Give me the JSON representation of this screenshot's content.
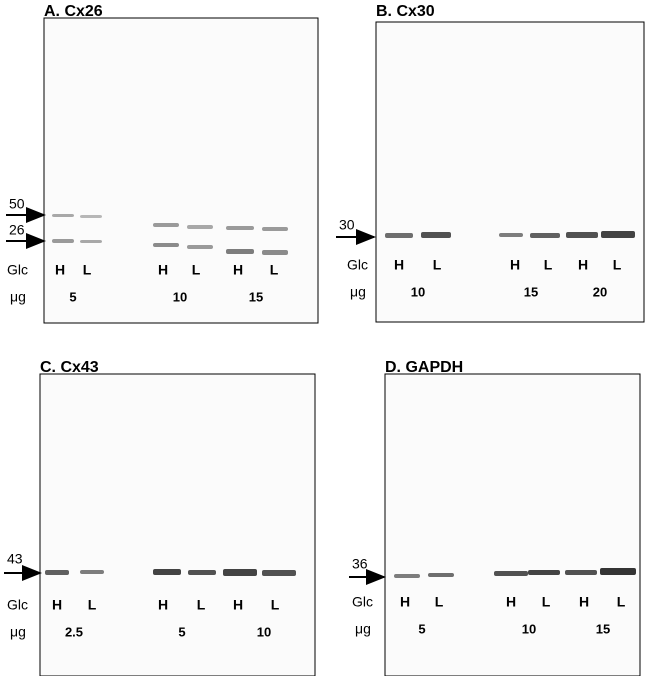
{
  "panels": [
    {
      "title": "A.  Cx26",
      "markers": [
        "50",
        "26"
      ],
      "row_labels": [
        "Glc",
        "μg"
      ],
      "lanes": [
        "H",
        "L",
        "H",
        "L",
        "H",
        "L"
      ],
      "amounts": [
        "5",
        "10",
        "15"
      ]
    },
    {
      "title": "B.  Cx30",
      "markers": [
        "30"
      ],
      "row_labels": [
        "Glc",
        "μg"
      ],
      "lanes": [
        "H",
        "L",
        "H",
        "L",
        "H",
        "L"
      ],
      "amounts": [
        "10",
        "15",
        "20"
      ]
    },
    {
      "title": "C.  Cx43",
      "markers": [
        "43"
      ],
      "row_labels": [
        "Glc",
        "μg"
      ],
      "lanes": [
        "H",
        "L",
        "H",
        "L",
        "H",
        "L"
      ],
      "amounts": [
        "2.5",
        "5",
        "10"
      ]
    },
    {
      "title": "D.  GAPDH",
      "markers": [
        "36"
      ],
      "row_labels": [
        "Glc",
        "μg"
      ],
      "lanes": [
        "H",
        "L",
        "H",
        "L",
        "H",
        "L"
      ],
      "amounts": [
        "5",
        "10",
        "15"
      ]
    }
  ]
}
